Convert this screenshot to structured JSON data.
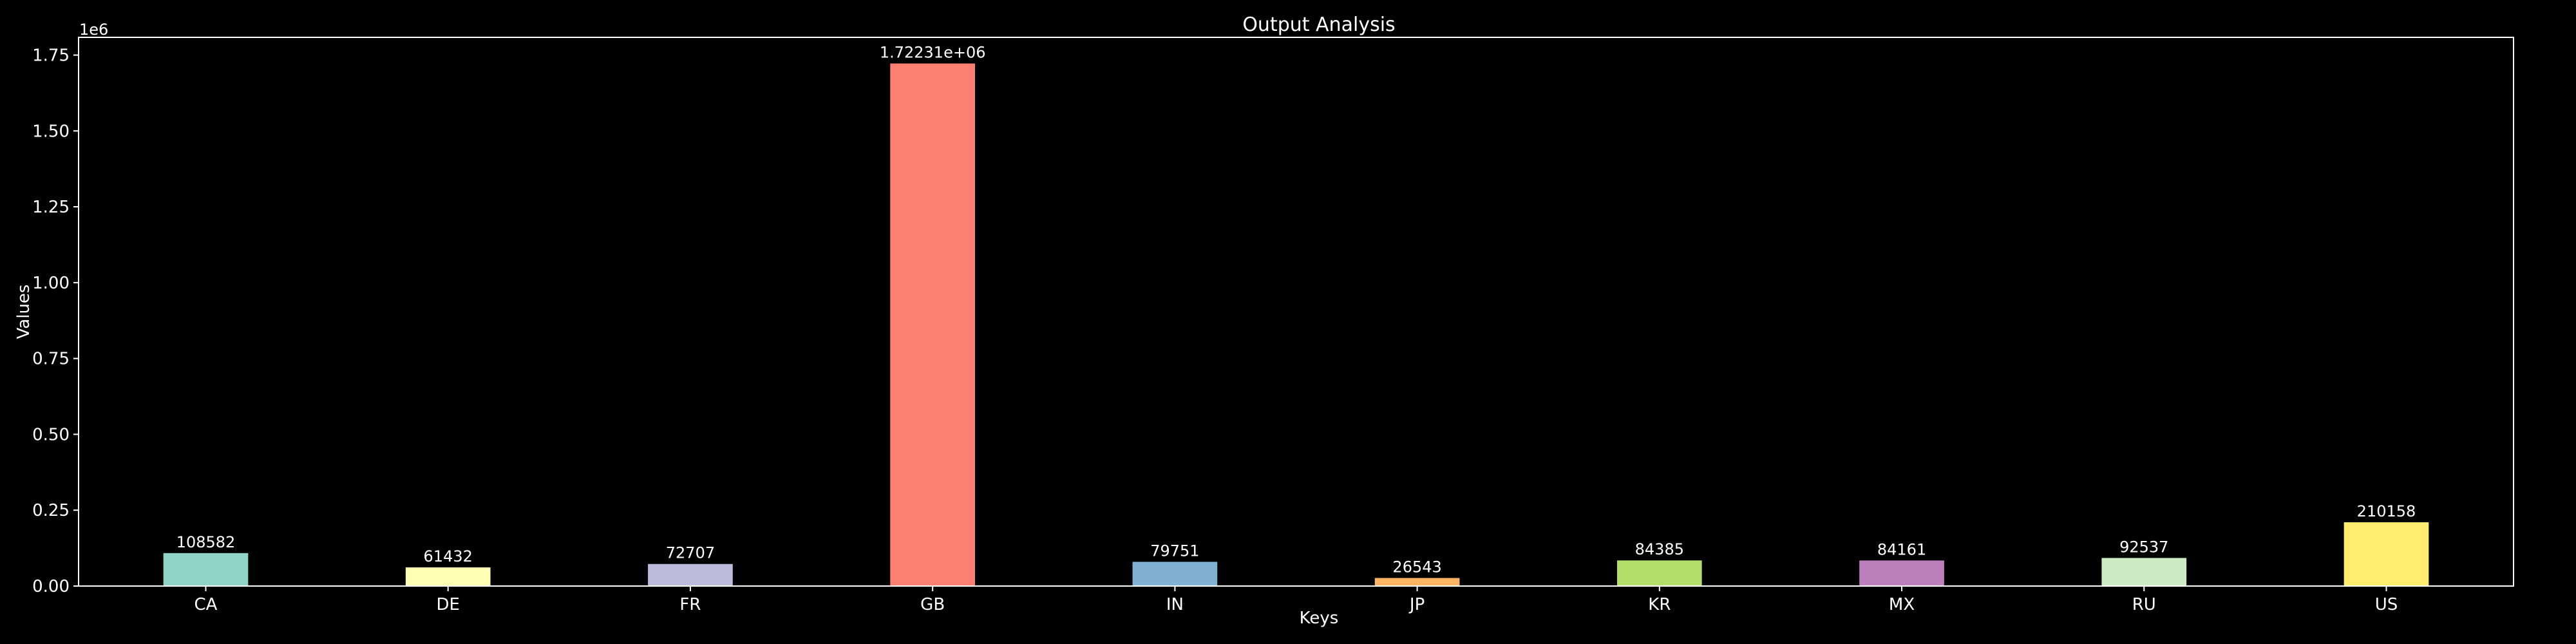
{
  "chart_data": {
    "type": "bar",
    "title": "Output Analysis",
    "xlabel": "Keys",
    "ylabel": "Values",
    "y_offset_label": "1e6",
    "categories": [
      "CA",
      "DE",
      "FR",
      "GB",
      "IN",
      "JP",
      "KR",
      "MX",
      "RU",
      "US"
    ],
    "values": [
      108582,
      61432,
      72707,
      1722310,
      79751,
      26543,
      84385,
      84161,
      92537,
      210158
    ],
    "value_labels": [
      "108582",
      "61432",
      "72707",
      "1.72231e+06",
      "79751",
      "26543",
      "84385",
      "84161",
      "92537",
      "210158"
    ],
    "colors": [
      "#8dd3c7",
      "#ffffb3",
      "#bebada",
      "#fb8072",
      "#80b1d3",
      "#fdb462",
      "#b3de69",
      "#bc80bd",
      "#ccebc5",
      "#ffed6f"
    ],
    "yticks": [
      0,
      250000,
      500000,
      750000,
      1000000,
      1250000,
      1500000,
      1750000
    ],
    "ytick_labels": [
      "0.00",
      "0.25",
      "0.50",
      "0.75",
      "1.00",
      "1.25",
      "1.50",
      "1.75"
    ],
    "ylim": [
      0,
      1808425
    ],
    "grid": false,
    "background": "#000000",
    "foreground": "#ffffff"
  }
}
